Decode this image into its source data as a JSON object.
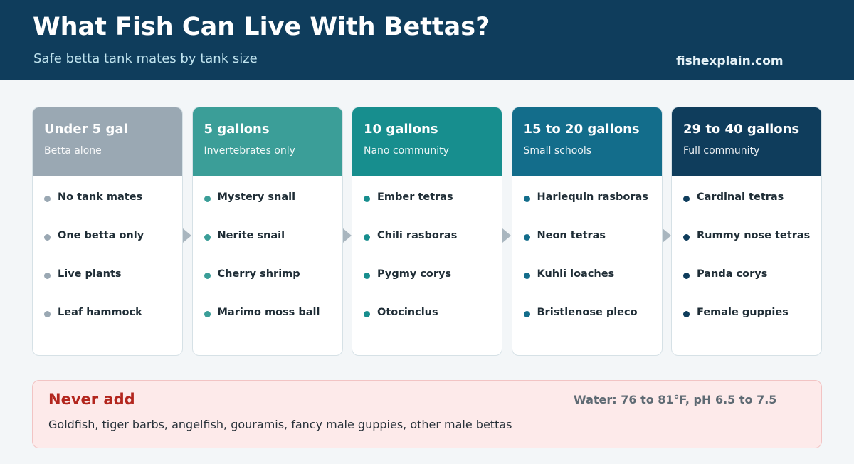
{
  "header": {
    "title": "What Fish Can Live With Bettas?",
    "subtitle": "Safe betta tank mates by tank size",
    "site": "fishexplain.com"
  },
  "cards": [
    {
      "name": "Under 5 gal",
      "desc": "Betta alone",
      "color": "#9aa8b3",
      "items": [
        "No tank mates",
        "One betta only",
        "Live plants",
        "Leaf hammock"
      ]
    },
    {
      "name": "5 gallons",
      "desc": "Invertebrates only",
      "color": "#3b9e98",
      "items": [
        "Mystery snail",
        "Nerite snail",
        "Cherry shrimp",
        "Marimo moss ball"
      ]
    },
    {
      "name": "10 gallons",
      "desc": "Nano community",
      "color": "#178e8e",
      "items": [
        "Ember tetras",
        "Chili rasboras",
        "Pygmy corys",
        "Otocinclus"
      ]
    },
    {
      "name": "15 to 20 gallons",
      "desc": "Small schools",
      "color": "#136d8b",
      "items": [
        "Harlequin rasboras",
        "Neon tetras",
        "Kuhli loaches",
        "Bristlenose pleco"
      ]
    },
    {
      "name": "29 to 40 gallons",
      "desc": "Full community",
      "color": "#0f3d5c",
      "items": [
        "Cardinal tetras",
        "Rummy nose tetras",
        "Panda corys",
        "Female guppies"
      ]
    }
  ],
  "warning": {
    "title": "Never add",
    "text": "Goldfish, tiger barbs, angelfish, gouramis, fancy male guppies, other male bettas",
    "water": "Water: 76 to 81°F, pH 6.5 to 7.5"
  }
}
